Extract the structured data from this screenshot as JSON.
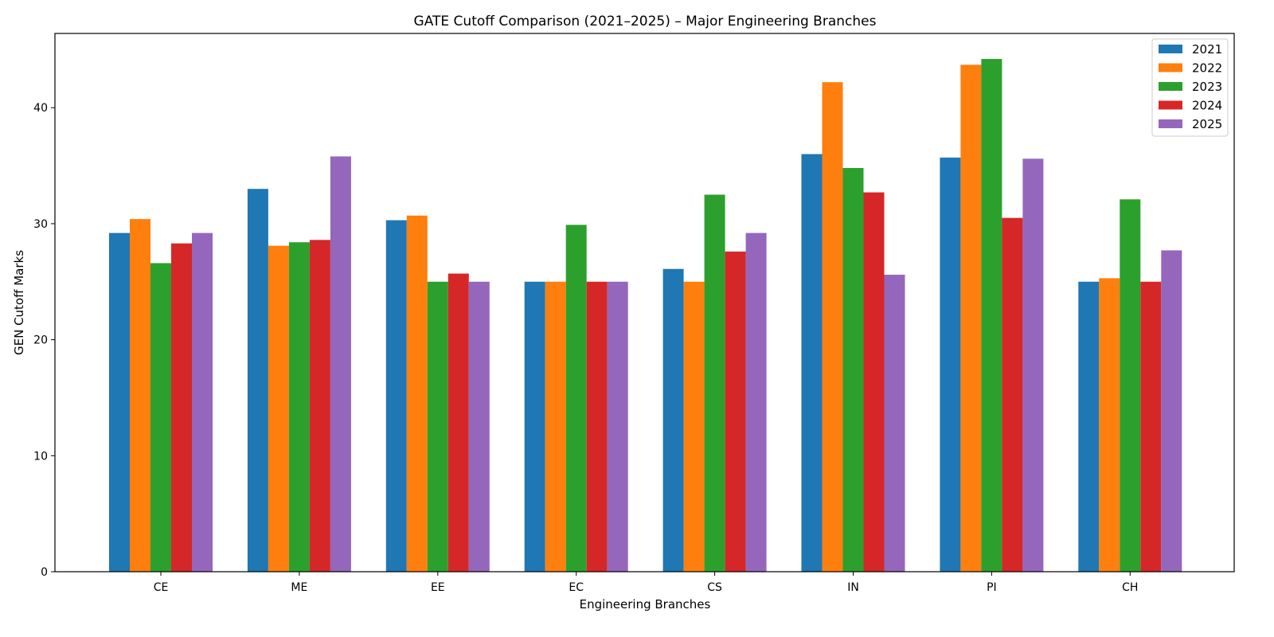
{
  "chart_data": {
    "type": "bar",
    "title": "GATE Cutoff Comparison (2021–2025) – Major Engineering Branches",
    "xlabel": "Engineering Branches",
    "ylabel": "GEN Cutoff Marks",
    "categories": [
      "CE",
      "ME",
      "EE",
      "EC",
      "CS",
      "IN",
      "PI",
      "CH"
    ],
    "series": [
      {
        "name": "2021",
        "color": "#1f77b4",
        "values": [
          29.2,
          33.0,
          30.3,
          25.0,
          26.1,
          36.0,
          35.7,
          25.0
        ]
      },
      {
        "name": "2022",
        "color": "#ff7f0e",
        "values": [
          30.4,
          28.1,
          30.7,
          25.0,
          25.0,
          42.2,
          43.7,
          25.3
        ]
      },
      {
        "name": "2023",
        "color": "#2ca02c",
        "values": [
          26.6,
          28.4,
          25.0,
          29.9,
          32.5,
          34.8,
          44.2,
          32.1
        ]
      },
      {
        "name": "2024",
        "color": "#d62728",
        "values": [
          28.3,
          28.6,
          25.7,
          25.0,
          27.6,
          32.7,
          30.5,
          25.0
        ]
      },
      {
        "name": "2025",
        "color": "#9467bd",
        "values": [
          29.2,
          35.8,
          25.0,
          25.0,
          29.2,
          25.6,
          35.6,
          27.7
        ]
      }
    ],
    "ylim": [
      0,
      46.4
    ],
    "yticks": [
      0,
      10,
      20,
      30,
      40
    ],
    "grid": false,
    "legend_position": "top-right"
  }
}
